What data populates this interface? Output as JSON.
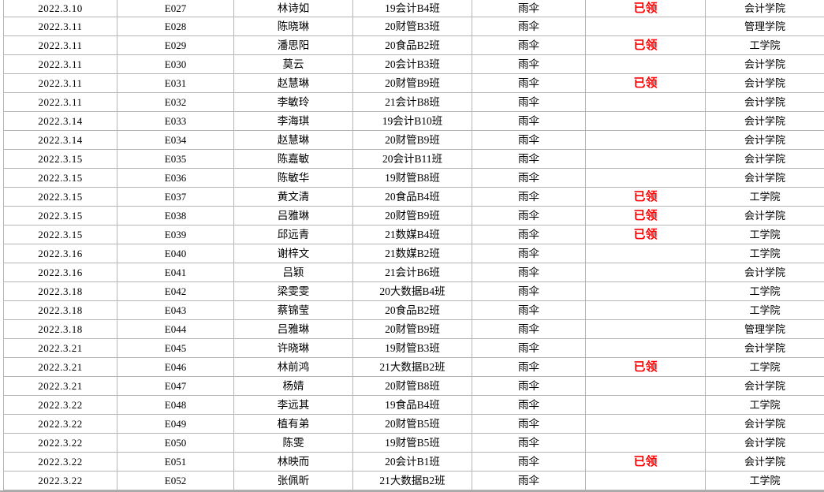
{
  "colors": {
    "background": "#ffffff",
    "gridline": "#b5b5b5",
    "text": "#000000",
    "status_received_red": "#ff0000",
    "bottom_bar": "#a8a8a8"
  },
  "table": {
    "column_keys": [
      "date",
      "id",
      "name",
      "class",
      "item",
      "status",
      "college"
    ],
    "rows": [
      {
        "date": "2022.3.10",
        "id": "E027",
        "name": "林诗如",
        "class": "19会计B4班",
        "item": "雨伞",
        "status": "已领",
        "college": "会计学院"
      },
      {
        "date": "2022.3.11",
        "id": "E028",
        "name": "陈晓琳",
        "class": "20财管B3班",
        "item": "雨伞",
        "status": "",
        "college": "管理学院"
      },
      {
        "date": "2022.3.11",
        "id": "E029",
        "name": "潘思阳",
        "class": "20食品B2班",
        "item": "雨伞",
        "status": "已领",
        "college": "工学院"
      },
      {
        "date": "2022.3.11",
        "id": "E030",
        "name": "莫云",
        "class": "20会计B3班",
        "item": "雨伞",
        "status": "",
        "college": "会计学院"
      },
      {
        "date": "2022.3.11",
        "id": "E031",
        "name": "赵慧琳",
        "class": "20财管B9班",
        "item": "雨伞",
        "status": "已领",
        "college": "会计学院"
      },
      {
        "date": "2022.3.11",
        "id": "E032",
        "name": "李敏玲",
        "class": "21会计B8班",
        "item": "雨伞",
        "status": "",
        "college": "会计学院"
      },
      {
        "date": "2022.3.14",
        "id": "E033",
        "name": "李海琪",
        "class": "19会计B10班",
        "item": "雨伞",
        "status": "",
        "college": "会计学院"
      },
      {
        "date": "2022.3.14",
        "id": "E034",
        "name": "赵慧琳",
        "class": "20财管B9班",
        "item": "雨伞",
        "status": "",
        "college": "会计学院"
      },
      {
        "date": "2022.3.15",
        "id": "E035",
        "name": "陈嘉敏",
        "class": "20会计B11班",
        "item": "雨伞",
        "status": "",
        "college": "会计学院"
      },
      {
        "date": "2022.3.15",
        "id": "E036",
        "name": "陈敏华",
        "class": "19财管B8班",
        "item": "雨伞",
        "status": "",
        "college": "会计学院"
      },
      {
        "date": "2022.3.15",
        "id": "E037",
        "name": "黄文清",
        "class": "20食品B4班",
        "item": "雨伞",
        "status": "已领",
        "college": "工学院"
      },
      {
        "date": "2022.3.15",
        "id": "E038",
        "name": "吕雅琳",
        "class": "20财管B9班",
        "item": "雨伞",
        "status": "已领",
        "college": "会计学院"
      },
      {
        "date": "2022.3.15",
        "id": "E039",
        "name": "邱远青",
        "class": "21数媒B4班",
        "item": "雨伞",
        "status": "已领",
        "college": "工学院"
      },
      {
        "date": "2022.3.16",
        "id": "E040",
        "name": "谢梓文",
        "class": "21数媒B2班",
        "item": "雨伞",
        "status": "",
        "college": "工学院"
      },
      {
        "date": "2022.3.16",
        "id": "E041",
        "name": "吕颖",
        "class": "21会计B6班",
        "item": "雨伞",
        "status": "",
        "college": "会计学院"
      },
      {
        "date": "2022.3.18",
        "id": "E042",
        "name": "梁雯雯",
        "class": "20大数据B4班",
        "item": "雨伞",
        "status": "",
        "college": "工学院"
      },
      {
        "date": "2022.3.18",
        "id": "E043",
        "name": "蔡锦莹",
        "class": "20食品B2班",
        "item": "雨伞",
        "status": "",
        "college": "工学院"
      },
      {
        "date": "2022.3.18",
        "id": "E044",
        "name": "吕雅琳",
        "class": "20财管B9班",
        "item": "雨伞",
        "status": "",
        "college": "管理学院"
      },
      {
        "date": "2022.3.21",
        "id": "E045",
        "name": "许晓琳",
        "class": "19财管B3班",
        "item": "雨伞",
        "status": "",
        "college": "会计学院"
      },
      {
        "date": "2022.3.21",
        "id": "E046",
        "name": "林前鸿",
        "class": "21大数据B2班",
        "item": "雨伞",
        "status": "已领",
        "college": "工学院"
      },
      {
        "date": "2022.3.21",
        "id": "E047",
        "name": "杨婧",
        "class": "20财管B8班",
        "item": "雨伞",
        "status": "",
        "college": "会计学院"
      },
      {
        "date": "2022.3.22",
        "id": "E048",
        "name": "李远其",
        "class": "19食品B4班",
        "item": "雨伞",
        "status": "",
        "college": "工学院"
      },
      {
        "date": "2022.3.22",
        "id": "E049",
        "name": "植有弟",
        "class": "20财管B5班",
        "item": "雨伞",
        "status": "",
        "college": "会计学院"
      },
      {
        "date": "2022.3.22",
        "id": "E050",
        "name": "陈雯",
        "class": "19财管B5班",
        "item": "雨伞",
        "status": "",
        "college": "会计学院"
      },
      {
        "date": "2022.3.22",
        "id": "E051",
        "name": "林映而",
        "class": "20会计B1班",
        "item": "雨伞",
        "status": "已领",
        "college": "会计学院"
      },
      {
        "date": "2022.3.22",
        "id": "E052",
        "name": "张佩昕",
        "class": "21大数据B2班",
        "item": "雨伞",
        "status": "",
        "college": "工学院"
      }
    ]
  }
}
